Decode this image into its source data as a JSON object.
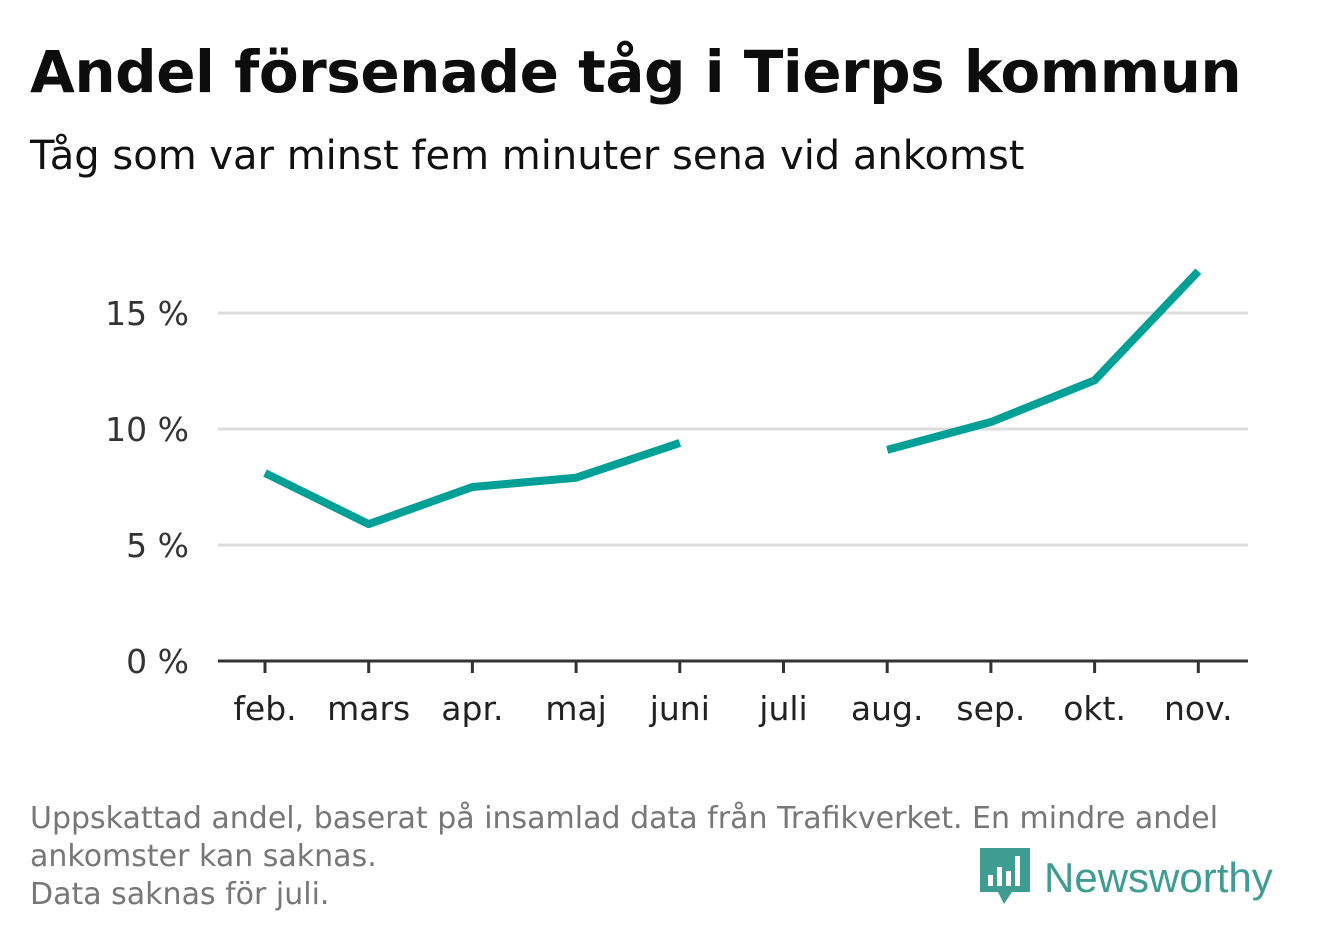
{
  "title": "Andel försenade tåg i Tierps kommun",
  "subtitle": "Tåg som var minst fem minuter sena vid ankomst",
  "footer": {
    "line1": "Uppskattad andel, baserat på insamlad data från Trafikverket. En mindre andel",
    "line2": "ankomster kan saknas.",
    "line3": "Data saknas för juli."
  },
  "logo": {
    "text": "Newsworthy",
    "icon": "newsworthy-bar-chart-icon",
    "color": "#3f9c93"
  },
  "chart_data": {
    "type": "line",
    "categories": [
      "feb.",
      "mars",
      "apr.",
      "maj",
      "juni",
      "juli",
      "aug.",
      "sep.",
      "okt.",
      "nov."
    ],
    "series": [
      {
        "values": [
          8.1,
          5.9,
          7.5,
          7.9,
          9.4,
          null,
          9.1,
          10.3,
          12.1,
          16.8
        ],
        "color": "#00a096"
      }
    ],
    "yticks": [
      0,
      5,
      10,
      15
    ],
    "ytick_labels": [
      "0 %",
      "5 %",
      "10 %",
      "15 %"
    ],
    "ylim": [
      0,
      17
    ],
    "grid": true,
    "xlabel": "",
    "ylabel": ""
  }
}
